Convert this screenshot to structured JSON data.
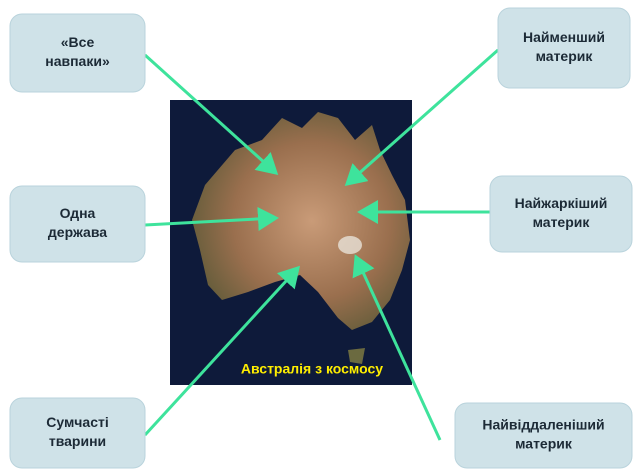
{
  "image_caption": "Австралія з космосу",
  "nodes": [
    {
      "lines": [
        "«Все",
        "навпаки»"
      ]
    },
    {
      "lines": [
        "Одна",
        "держава"
      ]
    },
    {
      "lines": [
        "Сумчасті",
        "тварини"
      ]
    },
    {
      "lines": [
        "Найменший",
        "материк"
      ]
    },
    {
      "lines": [
        "Найжаркіший",
        "материк"
      ]
    },
    {
      "lines": [
        "Найвіддаленіший",
        "материк"
      ]
    }
  ]
}
